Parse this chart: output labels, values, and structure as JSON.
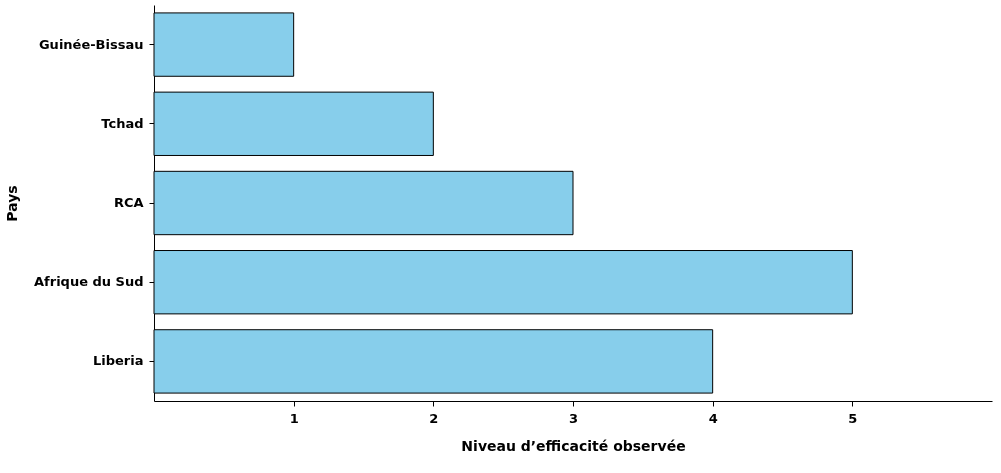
{
  "chart_data": {
    "type": "bar",
    "orientation": "horizontal",
    "xlabel": "Niveau d’efficacité observée",
    "ylabel": "Pays",
    "categories": [
      "Guinée-Bissau",
      "Tchad",
      "RCA",
      "Afrique du Sud",
      "Liberia"
    ],
    "values": [
      1,
      2,
      3,
      5,
      4
    ],
    "color": "#87ceeb",
    "xlim": [
      0,
      6
    ],
    "xticks": [
      1,
      2,
      3,
      4,
      5
    ],
    "grid": false
  }
}
